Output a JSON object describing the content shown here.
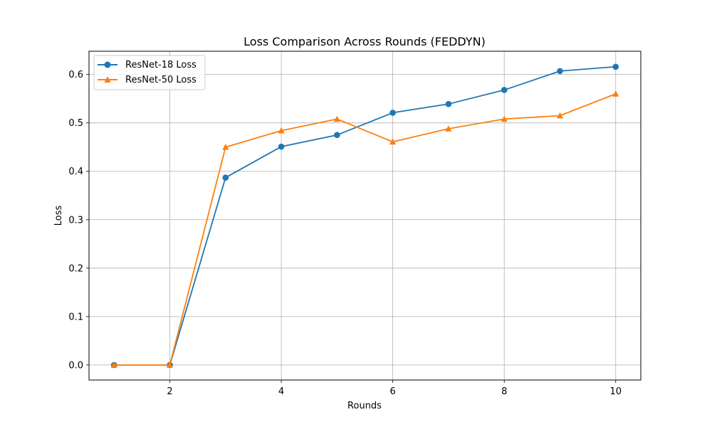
{
  "chart_data": {
    "type": "line",
    "title": "Loss Comparison Across Rounds (FEDDYN)",
    "xlabel": "Rounds",
    "ylabel": "Loss",
    "x": [
      1,
      2,
      3,
      4,
      5,
      6,
      7,
      8,
      9,
      10
    ],
    "xlim": [
      0.55,
      10.45
    ],
    "ylim": [
      -0.031,
      0.648
    ],
    "xticks": [
      2,
      4,
      6,
      8,
      10
    ],
    "yticks": [
      0.0,
      0.1,
      0.2,
      0.3,
      0.4,
      0.5,
      0.6
    ],
    "xtick_labels": [
      "2",
      "4",
      "6",
      "8",
      "10"
    ],
    "ytick_labels": [
      "0.0",
      "0.1",
      "0.2",
      "0.3",
      "0.4",
      "0.5",
      "0.6"
    ],
    "grid": true,
    "legend_position": "top-left",
    "series": [
      {
        "name": "ResNet-18 Loss",
        "color": "#1f77b4",
        "marker": "circle",
        "values": [
          0.0,
          0.0,
          0.387,
          0.451,
          0.475,
          0.521,
          0.539,
          0.568,
          0.607,
          0.616
        ]
      },
      {
        "name": "ResNet-50 Loss",
        "color": "#ff7f0e",
        "marker": "triangle",
        "values": [
          0.0,
          0.0,
          0.45,
          0.484,
          0.508,
          0.461,
          0.488,
          0.508,
          0.515,
          0.56
        ]
      }
    ]
  }
}
